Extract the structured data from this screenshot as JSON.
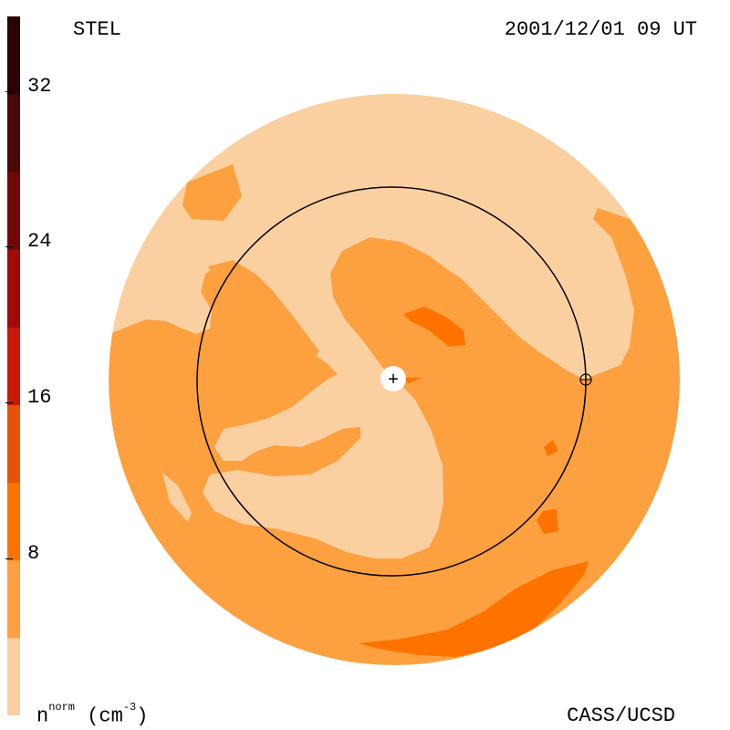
{
  "header": {
    "source": "STEL",
    "timestamp": "2001/12/01 09 UT"
  },
  "footer": {
    "credit": "CASS/UCSD"
  },
  "colorbar": {
    "unit_base": "n",
    "unit_sup": "norm",
    "unit_suffix": "(cm",
    "unit_exp": "-3",
    "unit_close": ")",
    "ticks": [
      "32",
      "24",
      "16",
      "8"
    ],
    "levels": [
      {
        "color": "#fbd0a0"
      },
      {
        "color": "#fca040"
      },
      {
        "color": "#fe7200"
      },
      {
        "color": "#e85208"
      },
      {
        "color": "#c81808"
      },
      {
        "color": "#a00a08"
      },
      {
        "color": "#700808"
      },
      {
        "color": "#4a0808"
      },
      {
        "color": "#2a0404"
      }
    ]
  },
  "map": {
    "type": "heliospheric density synoptic view",
    "sun_marker": "+",
    "earth_marker": "⊕"
  }
}
